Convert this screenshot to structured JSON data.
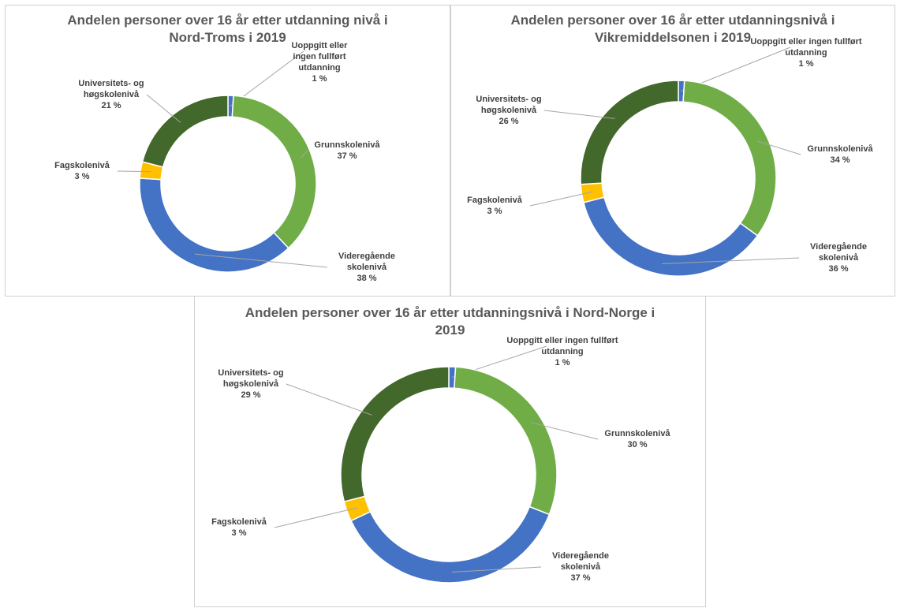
{
  "chart_data": [
    {
      "type": "pie",
      "style": "donut",
      "title_lines": [
        "Andelen personer over 16 år etter utdanning nivå i",
        "Nord-Troms i 2019"
      ],
      "slices": [
        {
          "name": "Uoppgitt eller ingen fullført utdanning",
          "value": 1,
          "label_lines": [
            "Uoppgitt eller",
            "ingen fullført",
            "utdanning",
            "1 %"
          ],
          "color": "#4472c4"
        },
        {
          "name": "Grunnskolenivå",
          "value": 37,
          "label_lines": [
            "Grunnskolenivå",
            "37 %"
          ],
          "color": "#70ad47"
        },
        {
          "name": "Videregående skolenivå",
          "value": 38,
          "label_lines": [
            "Videregående",
            "skolenivå",
            "38 %"
          ],
          "color": "#4472c4"
        },
        {
          "name": "Fagskolenivå",
          "value": 3,
          "label_lines": [
            "Fagskolenivå",
            "3 %"
          ],
          "color": "#ffc000"
        },
        {
          "name": "Universitets- og høgskolenivå",
          "value": 21,
          "label_lines": [
            "Universitets- og",
            "høgskolenivå",
            "21 %"
          ],
          "color": "#43682b"
        }
      ]
    },
    {
      "type": "pie",
      "style": "donut",
      "title_lines": [
        "Andelen personer over 16 år etter utdanningsnivå i",
        "Vikremiddelsonen i 2019"
      ],
      "slices": [
        {
          "name": "Uoppgitt eller ingen fullført utdanning",
          "value": 1,
          "label_lines": [
            "Uoppgitt eller ingen fullført",
            "utdanning",
            "1 %"
          ],
          "color": "#4472c4"
        },
        {
          "name": "Grunnskolenivå",
          "value": 34,
          "label_lines": [
            "Grunnskolenivå",
            "34 %"
          ],
          "color": "#70ad47"
        },
        {
          "name": "Videregående skolenivå",
          "value": 36,
          "label_lines": [
            "Videregående",
            "skolenivå",
            "36 %"
          ],
          "color": "#4472c4"
        },
        {
          "name": "Fagskolenivå",
          "value": 3,
          "label_lines": [
            "Fagskolenivå",
            "3 %"
          ],
          "color": "#ffc000"
        },
        {
          "name": "Universitets- og høgskolenivå",
          "value": 26,
          "label_lines": [
            "Universitets- og",
            "høgskolenivå",
            "26 %"
          ],
          "color": "#43682b"
        }
      ]
    },
    {
      "type": "pie",
      "style": "donut",
      "title_lines": [
        "Andelen personer over 16 år etter utdanningsnivå i Nord-Norge i",
        "2019"
      ],
      "slices": [
        {
          "name": "Uoppgitt eller ingen fullført utdanning",
          "value": 1,
          "label_lines": [
            "Uoppgitt eller ingen fullført",
            "utdanning",
            "1 %"
          ],
          "color": "#4472c4"
        },
        {
          "name": "Grunnskolenivå",
          "value": 30,
          "label_lines": [
            "Grunnskolenivå",
            "30 %"
          ],
          "color": "#70ad47"
        },
        {
          "name": "Videregående skolenivå",
          "value": 37,
          "label_lines": [
            "Videregående",
            "skolenivå",
            "37 %"
          ],
          "color": "#4472c4"
        },
        {
          "name": "Fagskolenivå",
          "value": 3,
          "label_lines": [
            "Fagskolenivå",
            "3 %"
          ],
          "color": "#ffc000"
        },
        {
          "name": "Universitets- og høgskolenivå",
          "value": 29,
          "label_lines": [
            "Universitets- og",
            "høgskolenivå",
            "29 %"
          ],
          "color": "#43682b"
        }
      ]
    }
  ]
}
